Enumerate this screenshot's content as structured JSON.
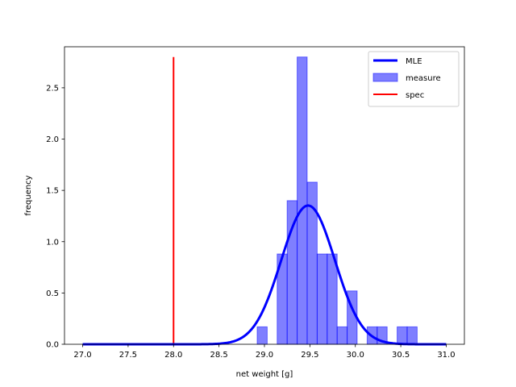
{
  "chart_data": {
    "type": "histogram",
    "title": "",
    "xlabel": "net weight [g]",
    "ylabel": "frequency",
    "xlim": [
      26.8,
      31.2
    ],
    "ylim": [
      0,
      2.9
    ],
    "x_ticks": [
      "27.0",
      "27.5",
      "28.0",
      "28.5",
      "29.0",
      "29.5",
      "30.0",
      "30.5",
      "31.0"
    ],
    "y_ticks": [
      "0.0",
      "0.5",
      "1.0",
      "1.5",
      "2.0",
      "2.5"
    ],
    "grid": false,
    "legend": {
      "placement": "top-right",
      "entries": [
        {
          "label": "MLE",
          "kind": "line",
          "color": "#0000ff"
        },
        {
          "label": "measure",
          "kind": "patch",
          "color": "#0000ff"
        },
        {
          "label": "spec",
          "kind": "line",
          "color": "#ff0000"
        }
      ]
    },
    "histogram": {
      "name": "measure",
      "color": "#0000ff",
      "alpha": 0.5,
      "bins": [
        {
          "x0": 28.92,
          "x1": 29.03,
          "y": 0.17
        },
        {
          "x0": 29.03,
          "x1": 29.14,
          "y": 0.0
        },
        {
          "x0": 29.14,
          "x1": 29.25,
          "y": 0.88
        },
        {
          "x0": 29.25,
          "x1": 29.36,
          "y": 1.4
        },
        {
          "x0": 29.36,
          "x1": 29.47,
          "y": 2.8
        },
        {
          "x0": 29.47,
          "x1": 29.58,
          "y": 1.58
        },
        {
          "x0": 29.58,
          "x1": 29.69,
          "y": 0.88
        },
        {
          "x0": 29.69,
          "x1": 29.8,
          "y": 0.88
        },
        {
          "x0": 29.8,
          "x1": 29.91,
          "y": 0.17
        },
        {
          "x0": 29.91,
          "x1": 30.02,
          "y": 0.52
        },
        {
          "x0": 30.02,
          "x1": 30.13,
          "y": 0.0
        },
        {
          "x0": 30.13,
          "x1": 30.24,
          "y": 0.17
        },
        {
          "x0": 30.24,
          "x1": 30.35,
          "y": 0.17
        },
        {
          "x0": 30.35,
          "x1": 30.46,
          "y": 0.0
        },
        {
          "x0": 30.46,
          "x1": 30.57,
          "y": 0.17
        },
        {
          "x0": 30.57,
          "x1": 30.68,
          "y": 0.17
        }
      ]
    },
    "mle_curve": {
      "name": "MLE",
      "color": "#0000ff",
      "distribution": "normal",
      "mean": 29.48,
      "std": 0.295,
      "x_range": [
        27.0,
        31.0
      ]
    },
    "spec_line": {
      "name": "spec",
      "color": "#ff0000",
      "x": 28.0,
      "y_range": [
        0,
        2.8
      ]
    }
  }
}
